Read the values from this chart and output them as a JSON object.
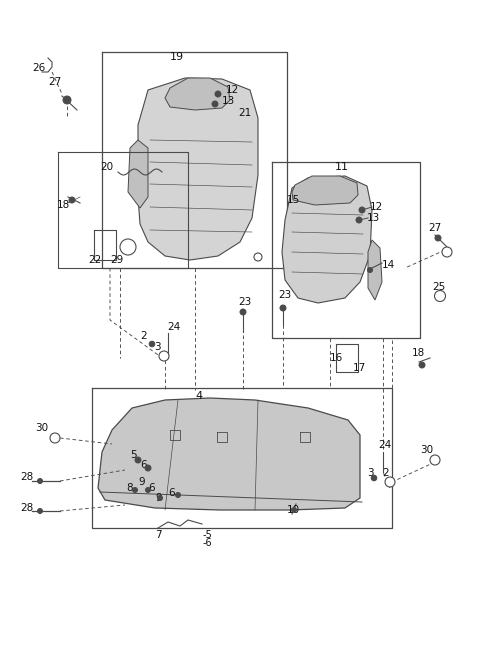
{
  "bg_color": "#ffffff",
  "line_color": "#4a4a4a",
  "text_color": "#111111",
  "fig_width": 4.8,
  "fig_height": 6.56,
  "dpi": 100
}
